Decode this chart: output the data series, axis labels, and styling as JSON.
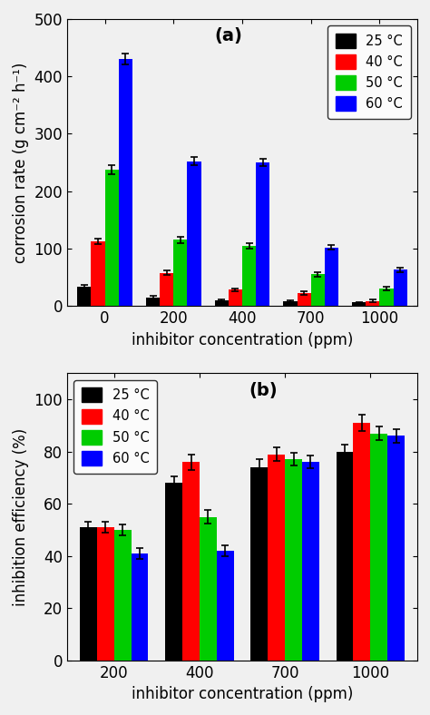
{
  "panel_a": {
    "title": "(a)",
    "xlabel": "inhibitor concentration (ppm)",
    "ylabel": "corrosion rate (g cm⁻² h⁻¹)",
    "ylim": [
      0,
      500
    ],
    "yticks": [
      0,
      100,
      200,
      300,
      400,
      500
    ],
    "xtick_labels": [
      "0",
      "200",
      "400",
      "700",
      "1000"
    ],
    "colors": [
      "#000000",
      "#ff0000",
      "#00cc00",
      "#0000ff"
    ],
    "temperatures": [
      "25 °C",
      "40 °C",
      "50 °C",
      "60 °C"
    ],
    "values": {
      "25C": [
        33,
        15,
        10,
        8,
        6
      ],
      "40C": [
        113,
        58,
        28,
        23,
        9
      ],
      "50C": [
        237,
        115,
        105,
        55,
        30
      ],
      "60C": [
        430,
        252,
        250,
        102,
        63
      ]
    },
    "errors": {
      "25C": [
        3,
        2,
        1.5,
        1.5,
        1
      ],
      "40C": [
        5,
        4,
        3,
        3,
        2
      ],
      "50C": [
        8,
        5,
        5,
        4,
        3
      ],
      "60C": [
        10,
        7,
        7,
        4,
        4
      ]
    }
  },
  "panel_b": {
    "title": "(b)",
    "xlabel": "inhibitor concentration (ppm)",
    "ylabel": "inhibition efficiency (%)",
    "ylim": [
      0,
      110
    ],
    "yticks": [
      0,
      20,
      40,
      60,
      80,
      100
    ],
    "xtick_labels": [
      "200",
      "400",
      "700",
      "1000"
    ],
    "colors": [
      "#000000",
      "#ff0000",
      "#00cc00",
      "#0000ff"
    ],
    "temperatures": [
      "25 °C",
      "40 °C",
      "50 °C",
      "60 °C"
    ],
    "values": {
      "25C": [
        51,
        68,
        74,
        80
      ],
      "40C": [
        51,
        76,
        79,
        91
      ],
      "50C": [
        50,
        55,
        77,
        87
      ],
      "60C": [
        41,
        42,
        76,
        86
      ]
    },
    "errors": {
      "25C": [
        2,
        2.5,
        3,
        2.5
      ],
      "40C": [
        2,
        3,
        2.5,
        3
      ],
      "50C": [
        2,
        2.5,
        2.5,
        2.5
      ],
      "60C": [
        2,
        2,
        2.5,
        2.5
      ]
    }
  },
  "bg_color": "#f0f0f0",
  "bar_width": 0.2,
  "title_fontsize": 14,
  "label_fontsize": 12,
  "tick_fontsize": 12
}
